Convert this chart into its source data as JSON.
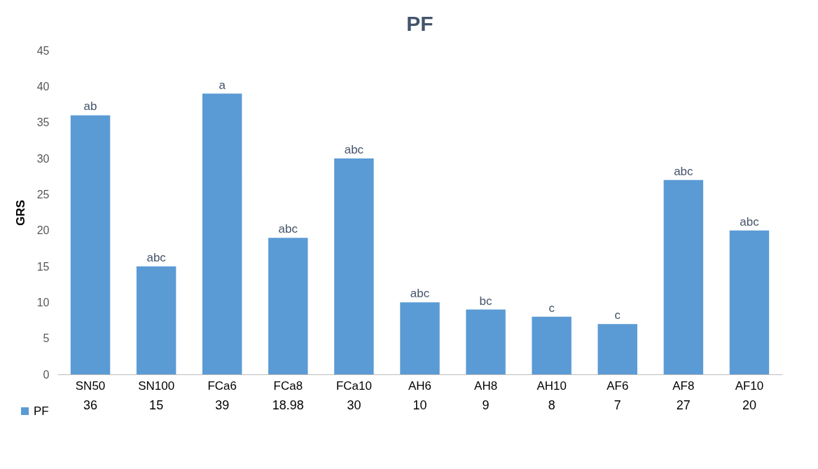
{
  "chart_data": {
    "type": "bar",
    "title": "PF",
    "ylabel": "GRS",
    "categories": [
      "SN50",
      "SN100",
      "FCa6",
      "FCa8",
      "FCa10",
      "AH6",
      "AH8",
      "AH10",
      "AF6",
      "AF8",
      "AF10"
    ],
    "series": [
      {
        "name": "PF",
        "color": "#5b9bd5",
        "values": [
          36,
          15,
          39,
          18.98,
          30,
          10,
          9,
          8,
          7,
          27,
          20
        ]
      }
    ],
    "ylim": [
      0,
      45
    ],
    "yticks": [
      0,
      5,
      10,
      15,
      20,
      25,
      30,
      35,
      40,
      45
    ],
    "data_labels": true,
    "legend": "bottom left",
    "annotations": [
      {
        "text": "ab",
        "x": "SN50",
        "y": 36
      },
      {
        "text": "abc",
        "x": "SN100",
        "y": 15
      },
      {
        "text": "a",
        "x": "FCa6",
        "y": 39
      },
      {
        "text": "abc",
        "x": "FCa8",
        "y": 18.98
      },
      {
        "text": "abc",
        "x": "FCa10",
        "y": 30
      },
      {
        "text": "abc",
        "x": "AH6",
        "y": 10
      },
      {
        "text": "bc",
        "x": "AH8",
        "y": 9
      },
      {
        "text": "c",
        "x": "AH10",
        "y": 8
      },
      {
        "text": "c",
        "x": "AF6",
        "y": 7
      },
      {
        "text": "abc",
        "x": "AF8",
        "y": 27
      },
      {
        "text": "abc",
        "x": "AF10",
        "y": 20
      }
    ]
  }
}
